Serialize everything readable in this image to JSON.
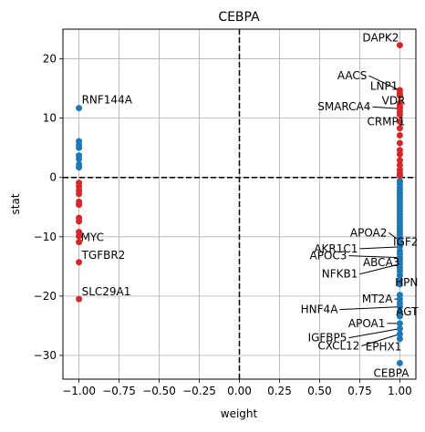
{
  "chart_data": {
    "type": "scatter",
    "title": "CEBPA",
    "xlabel": "weight",
    "ylabel": "stat",
    "xlim": [
      -1.1,
      1.1
    ],
    "ylim": [
      -34,
      25
    ],
    "xticks": [
      -1.0,
      -0.75,
      -0.5,
      -0.25,
      0.0,
      0.25,
      0.5,
      0.75,
      1.0
    ],
    "xtick_labels": [
      "−1.00",
      "−0.75",
      "−0.50",
      "−0.25",
      "0.00",
      "0.25",
      "0.50",
      "0.75",
      "1.00"
    ],
    "yticks": [
      -30,
      -20,
      -10,
      0,
      10,
      20
    ],
    "ytick_labels": [
      "−30",
      "−20",
      "−10",
      "0",
      "10",
      "20"
    ],
    "grid": true,
    "reference_lines": {
      "x": 0,
      "y": 0,
      "style": "dashed"
    },
    "colors": {
      "positive_weight_positive_stat": "#d62728",
      "positive_weight_negative_stat": "#1f77b4",
      "negative_weight_positive_stat": "#1f77b4",
      "negative_weight_negative_stat": "#d62728"
    },
    "series": [
      {
        "color": "#1f77b4",
        "points": [
          [
            -1,
            11.7
          ],
          [
            -1,
            6.1
          ],
          [
            -1,
            5.5
          ],
          [
            -1,
            5.0
          ],
          [
            -1,
            3.7
          ],
          [
            -1,
            3.1
          ],
          [
            -1,
            2.2
          ],
          [
            -1,
            1.7
          ],
          [
            1,
            -0.6
          ],
          [
            1,
            -1.1
          ],
          [
            1,
            -1.7
          ],
          [
            1,
            -2.2
          ],
          [
            1,
            -2.7
          ],
          [
            1,
            -3.2
          ],
          [
            1,
            -3.7
          ],
          [
            1,
            -4.2
          ],
          [
            1,
            -4.7
          ],
          [
            1,
            -5.2
          ],
          [
            1,
            -5.7
          ],
          [
            1,
            -6.2
          ],
          [
            1,
            -6.7
          ],
          [
            1,
            -7.2
          ],
          [
            1,
            -7.7
          ],
          [
            1,
            -8.2
          ],
          [
            1,
            -8.7
          ],
          [
            1,
            -9.2
          ],
          [
            1,
            -9.7
          ],
          [
            1,
            -10.2
          ],
          [
            1,
            -10.7
          ],
          [
            1,
            -11.2
          ],
          [
            1,
            -11.7
          ],
          [
            1,
            -12.4
          ],
          [
            1,
            -12.9
          ],
          [
            1,
            -13.5
          ],
          [
            1,
            -14.0
          ],
          [
            1,
            -14.6
          ],
          [
            1,
            -15.2
          ],
          [
            1,
            -15.8
          ],
          [
            1,
            -16.5
          ],
          [
            1,
            -17.3
          ],
          [
            1,
            -18.0
          ],
          [
            1,
            -19.8
          ],
          [
            1,
            -20.5
          ],
          [
            1,
            -21.2
          ],
          [
            1,
            -21.8
          ],
          [
            1,
            -22.6
          ],
          [
            1,
            -23.4
          ],
          [
            1,
            -24.6
          ],
          [
            1,
            -25.5
          ],
          [
            1,
            -26.4
          ],
          [
            1,
            -27.2
          ],
          [
            1,
            -31.3
          ]
        ]
      },
      {
        "color": "#d62728",
        "points": [
          [
            -1,
            -0.9
          ],
          [
            -1,
            -1.5
          ],
          [
            -1,
            -2.2
          ],
          [
            -1,
            -2.8
          ],
          [
            -1,
            -4.1
          ],
          [
            -1,
            -4.6
          ],
          [
            -1,
            -6.8
          ],
          [
            -1,
            -7.4
          ],
          [
            -1,
            -9.2
          ],
          [
            -1,
            -9.9
          ],
          [
            -1,
            -10.9
          ],
          [
            -1,
            -14.3
          ],
          [
            -1,
            -20.5
          ],
          [
            1,
            22.3
          ],
          [
            1,
            14.7
          ],
          [
            1,
            14.2
          ],
          [
            1,
            13.8
          ],
          [
            1,
            12.5
          ],
          [
            1,
            12.0
          ],
          [
            1,
            11.6
          ],
          [
            1,
            11.1
          ],
          [
            1,
            10.6
          ],
          [
            1,
            9.4
          ],
          [
            1,
            8.3
          ],
          [
            1,
            7.1
          ],
          [
            1,
            5.8
          ],
          [
            1,
            4.6
          ],
          [
            1,
            3.9
          ],
          [
            1,
            2.9
          ],
          [
            1,
            2.1
          ],
          [
            1,
            1.3
          ],
          [
            1,
            0.7
          ],
          [
            1,
            0.3
          ]
        ]
      }
    ],
    "annotations": [
      {
        "text": "RNF144A",
        "x": -1,
        "y": 11.7
      },
      {
        "text": "MYC",
        "x": -1,
        "y": -10.9
      },
      {
        "text": "TGFBR2",
        "x": -1,
        "y": -14.3
      },
      {
        "text": "SLC29A1",
        "x": -1,
        "y": -20.5
      },
      {
        "text": "DAPK2",
        "x": 1,
        "y": 22.3
      },
      {
        "text": "AACS",
        "x": 1,
        "y": 14.7
      },
      {
        "text": "LNP1",
        "x": 1,
        "y": 14.2
      },
      {
        "text": "VDR",
        "x": 1,
        "y": 12.0
      },
      {
        "text": "SMARCA4",
        "x": 1,
        "y": 11.6
      },
      {
        "text": "CRMP1",
        "x": 1,
        "y": 11.1
      },
      {
        "text": "APOA2",
        "x": 1,
        "y": -10.7
      },
      {
        "text": "IGF2",
        "x": 1,
        "y": -11.2
      },
      {
        "text": "AKR1C1",
        "x": 1,
        "y": -11.7
      },
      {
        "text": "APOC3",
        "x": 1,
        "y": -13.5
      },
      {
        "text": "ABCA3",
        "x": 1,
        "y": -14.0
      },
      {
        "text": "NFKB1",
        "x": 1,
        "y": -14.6
      },
      {
        "text": "HPN",
        "x": 1,
        "y": -18.0
      },
      {
        "text": "MT2A",
        "x": 1,
        "y": -20.5
      },
      {
        "text": "HNF4A",
        "x": 1,
        "y": -21.8
      },
      {
        "text": "AGT",
        "x": 1,
        "y": -22.6
      },
      {
        "text": "APOA1",
        "x": 1,
        "y": -24.6
      },
      {
        "text": "IGFBP5",
        "x": 1,
        "y": -25.5
      },
      {
        "text": "EPHX1",
        "x": 1,
        "y": -27.2
      },
      {
        "text": "CXCL12",
        "x": 1,
        "y": -26.4
      },
      {
        "text": "CEBPA",
        "x": 1,
        "y": -31.3
      }
    ]
  }
}
